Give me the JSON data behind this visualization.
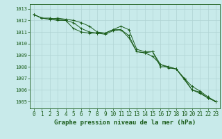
{
  "title": "Graphe pression niveau de la mer (hPa)",
  "background_color": "#c8eaea",
  "grid_color": "#b0d4d4",
  "line_color": "#1a5c1a",
  "x_labels": [
    "0",
    "1",
    "2",
    "3",
    "4",
    "5",
    "6",
    "7",
    "8",
    "9",
    "10",
    "11",
    "12",
    "13",
    "14",
    "15",
    "16",
    "17",
    "18",
    "19",
    "20",
    "21",
    "22",
    "23"
  ],
  "ylim": [
    1004.4,
    1013.4
  ],
  "yticks": [
    1005,
    1006,
    1007,
    1008,
    1009,
    1010,
    1011,
    1012,
    1013
  ],
  "series": [
    [
      1012.5,
      1012.2,
      1012.2,
      1012.1,
      1012.0,
      1011.3,
      1011.0,
      1010.9,
      1010.9,
      1010.9,
      1011.2,
      1011.2,
      1010.5,
      1009.3,
      1009.2,
      1009.3,
      1008.0,
      1008.0,
      1007.8,
      1007.0,
      1006.0,
      1005.8,
      1005.3,
      1005.0
    ],
    [
      1012.5,
      1012.2,
      1012.1,
      1012.0,
      1012.0,
      1011.8,
      1011.3,
      1011.0,
      1010.9,
      1010.8,
      1011.1,
      1011.2,
      1010.7,
      1009.3,
      1009.2,
      1008.9,
      1008.2,
      1007.9,
      1007.8,
      1006.9,
      1006.0,
      1005.7,
      1005.3,
      1005.0
    ],
    [
      1012.5,
      1012.2,
      1012.1,
      1012.2,
      1012.1,
      1012.0,
      1011.8,
      1011.5,
      1011.0,
      1010.9,
      1011.2,
      1011.5,
      1011.2,
      1009.5,
      1009.3,
      1009.3,
      1008.2,
      1008.0,
      1007.8,
      1007.0,
      1006.3,
      1005.9,
      1005.4,
      1005.0
    ]
  ],
  "ylabel_fontsize": 5.0,
  "xlabel_fontsize": 5.5,
  "title_fontsize": 6.5
}
